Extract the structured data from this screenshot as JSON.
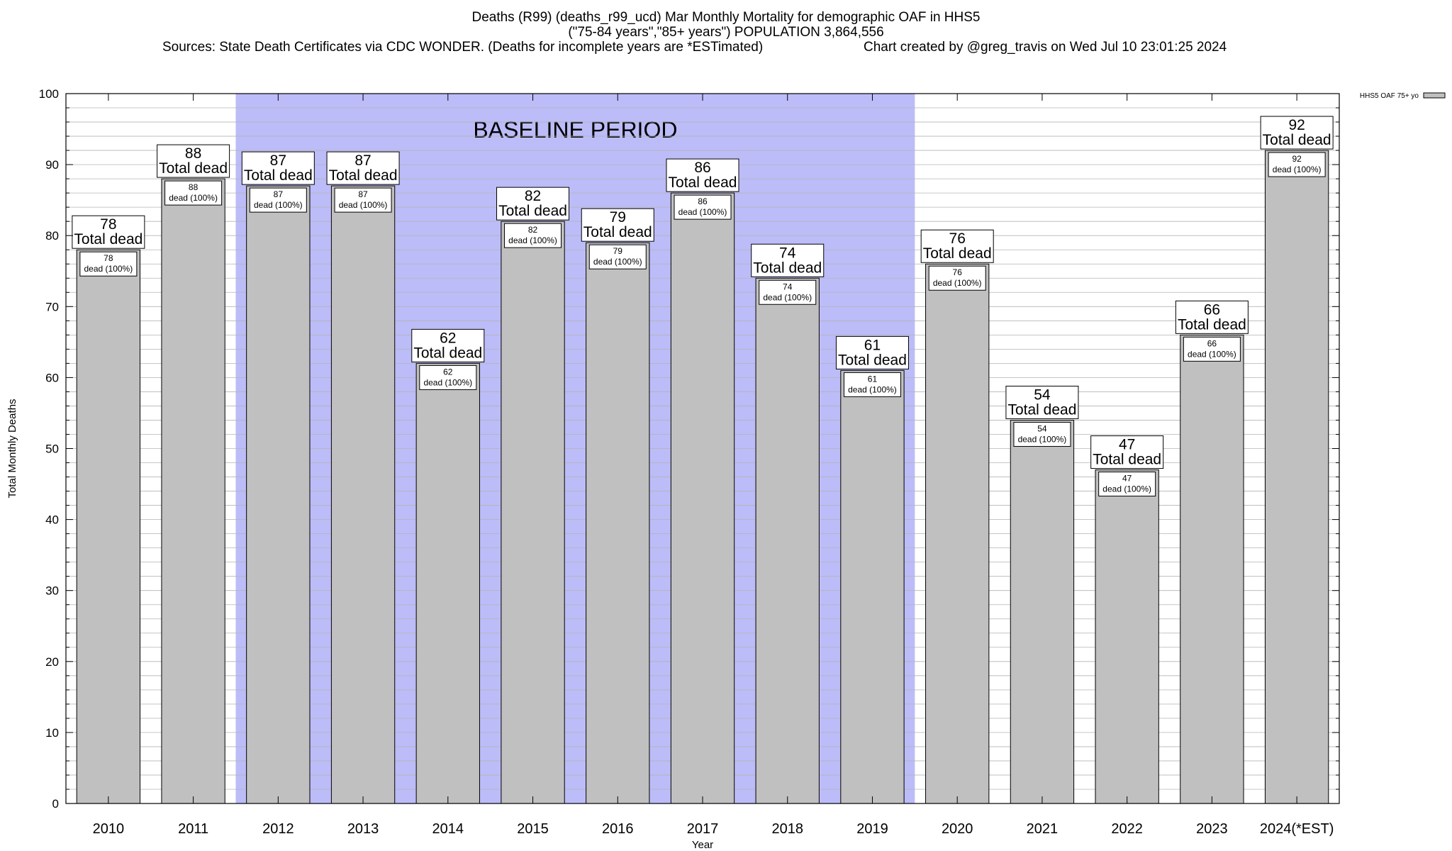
{
  "header": {
    "title_line1": "Deaths (R99) (deaths_r99_ucd) Mar Monthly Mortality for demographic OAF in HHS5",
    "title_line2": "(\"75-84 years\",\"85+ years\") POPULATION 3,864,556",
    "sources": "Sources: State Death Certificates via CDC WONDER. (Deaths for incomplete years are *ESTimated)",
    "credit": "Chart created by @greg_travis on Wed Jul 10 23:01:25 2024"
  },
  "chart_data": {
    "type": "bar",
    "categories": [
      "2010",
      "2011",
      "2012",
      "2013",
      "2014",
      "2015",
      "2016",
      "2017",
      "2018",
      "2019",
      "2020",
      "2021",
      "2022",
      "2023",
      "2024(*EST)"
    ],
    "series": [
      {
        "name": "HHS5 OAF 75+ yo",
        "values": [
          78,
          88,
          87,
          87,
          62,
          82,
          79,
          86,
          74,
          61,
          76,
          54,
          47,
          66,
          92
        ]
      }
    ],
    "bar_top_label": "Total dead",
    "bar_inner_label": "dead (100%)",
    "xlabel": "Year",
    "ylabel": "Total Monthly Deaths",
    "ylim": [
      0,
      100
    ],
    "yticks": [
      0,
      10,
      20,
      30,
      40,
      50,
      60,
      70,
      80,
      90,
      100
    ],
    "grid": true,
    "legend_position": "top-right",
    "baseline": {
      "label": "BASELINE PERIOD",
      "from": "2012",
      "to": "2019"
    },
    "colors": {
      "bar": "#c0c0c0",
      "baseline": "#bcbcf8",
      "grid": "#b4b4b4"
    }
  }
}
